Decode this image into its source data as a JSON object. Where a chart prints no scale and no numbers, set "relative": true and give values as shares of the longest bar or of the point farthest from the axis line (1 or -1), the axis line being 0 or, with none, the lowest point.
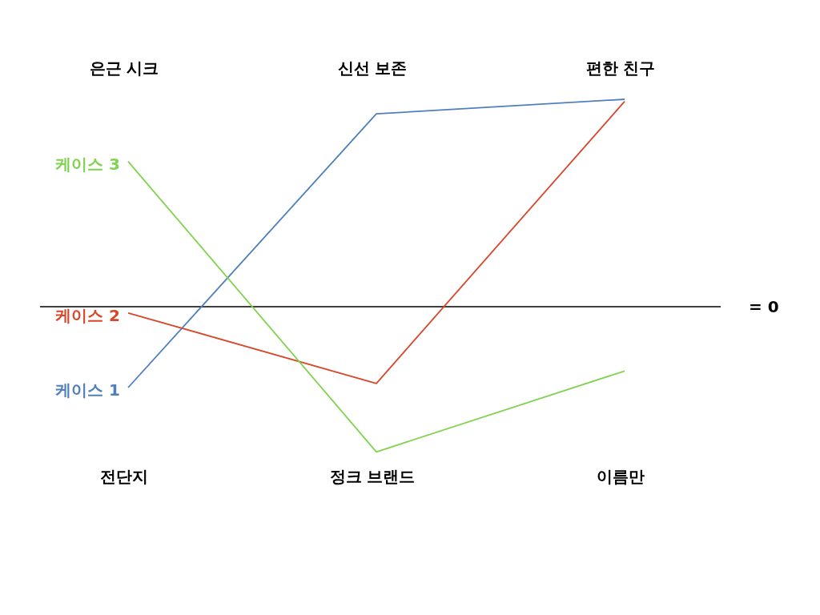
{
  "chart_data": {
    "type": "line",
    "relative": true,
    "categories": [
      "전단지",
      "정크 브랜드",
      "이름만"
    ],
    "annotations": [
      "은근 시크",
      "신선 보존",
      "편한 친구"
    ],
    "series": [
      {
        "name": "케이스 1",
        "color": "#4f7fbf",
        "values": [
          -0.39,
          0.93,
          1
        ]
      },
      {
        "name": "케이스 2",
        "color": "#d9472b",
        "values": [
          -0.03,
          -0.37,
          0.99
        ]
      },
      {
        "name": "케이스 3",
        "color": "#7fd34e",
        "values": [
          0.7,
          -0.7,
          -0.31
        ]
      }
    ],
    "ref_lines": [
      {
        "axis": "y",
        "value": 0,
        "label": "= 0",
        "color": "#000000"
      }
    ]
  }
}
